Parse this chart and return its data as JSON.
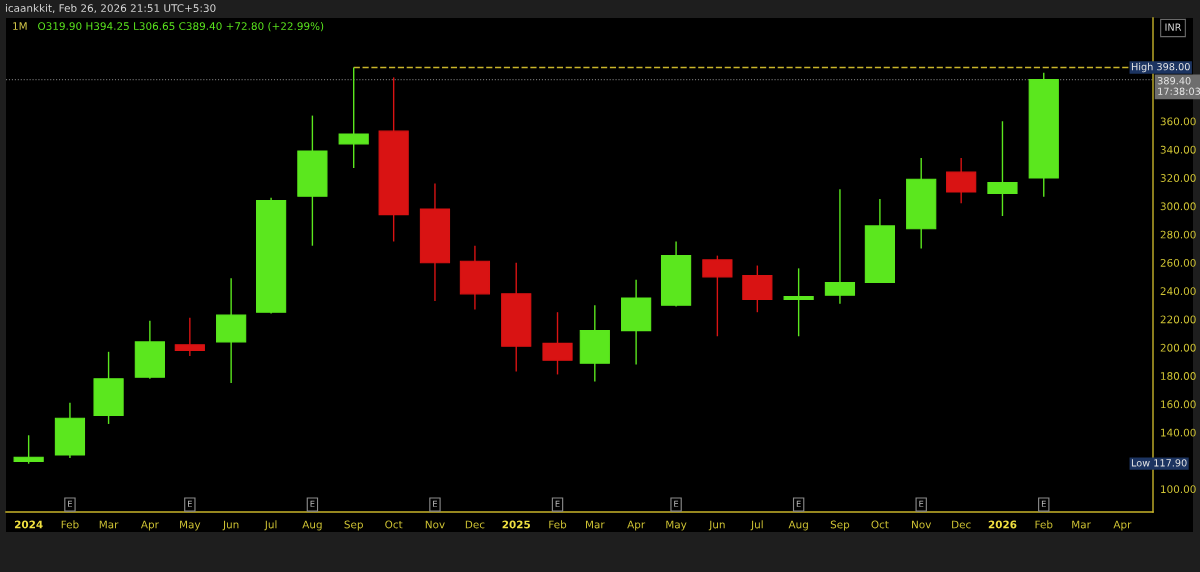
{
  "chart_data": {
    "type": "candlestick",
    "title": "1M",
    "subtitle": "O319.90 H394.25 L306.65 C389.40 +72.80 (+22.99%)",
    "x": [
      "2024-01",
      "2024-02",
      "2024-03",
      "2024-04",
      "2024-05",
      "2024-06",
      "2024-07",
      "2024-08",
      "2024-09",
      "2024-10",
      "2024-11",
      "2024-12",
      "2025-01",
      "2025-02",
      "2025-03",
      "2025-04",
      "2025-05",
      "2025-06",
      "2025-07",
      "2025-08",
      "2025-09",
      "2025-10",
      "2025-11",
      "2025-12",
      "2026-01",
      "2026-02"
    ],
    "ohlc": [
      [
        119.5,
        138,
        117.9,
        122.5
      ],
      [
        124,
        161,
        122,
        150
      ],
      [
        152,
        197,
        146,
        178
      ],
      [
        179,
        219,
        178,
        204
      ],
      [
        202,
        221,
        194,
        198
      ],
      [
        204,
        249,
        175,
        223
      ],
      [
        225,
        306,
        224,
        304
      ],
      [
        307,
        364,
        272,
        339
      ],
      [
        344,
        398,
        327,
        351
      ],
      [
        353,
        391,
        275,
        294
      ],
      [
        298,
        316,
        233,
        260
      ],
      [
        261,
        272,
        227,
        238
      ],
      [
        238,
        260,
        183,
        201
      ],
      [
        203,
        225,
        181,
        191
      ],
      [
        189,
        230,
        176,
        212
      ],
      [
        212,
        248,
        188,
        235
      ],
      [
        230,
        275,
        229,
        265
      ],
      [
        262,
        265,
        208,
        250
      ],
      [
        251,
        258,
        225,
        234
      ],
      [
        234,
        256,
        208,
        236
      ],
      [
        237,
        312,
        231,
        246
      ],
      [
        246,
        305,
        246,
        286
      ],
      [
        284,
        334,
        270,
        319
      ],
      [
        324,
        334,
        302,
        310
      ],
      [
        309,
        360,
        293,
        316.6
      ],
      [
        319.9,
        394.25,
        306.65,
        389.4
      ]
    ],
    "colors": [
      "#5be71e",
      "#5be71e",
      "#5be71e",
      "#5be71e",
      "#d91313",
      "#5be71e",
      "#5be71e",
      "#5be71e",
      "#5be71e",
      "#d91313",
      "#d91313",
      "#d91313",
      "#d91313",
      "#d91313",
      "#5be71e",
      "#5be71e",
      "#5be71e",
      "#d91313",
      "#d91313",
      "#5be71e",
      "#5be71e",
      "#5be71e",
      "#5be71e",
      "#d91313",
      "#5be71e",
      "#5be71e"
    ],
    "xlim": [
      "2023-12-15",
      "2026-04-24"
    ],
    "xticks": [
      {
        "value": "2024-01",
        "label": "2024"
      },
      {
        "value": "2024-02",
        "label": "Feb"
      },
      {
        "value": "2024-03",
        "label": "Mar"
      },
      {
        "value": "2024-04",
        "label": "Apr"
      },
      {
        "value": "2024-05",
        "label": "May"
      },
      {
        "value": "2024-06",
        "label": "Jun"
      },
      {
        "value": "2024-07",
        "label": "Jul"
      },
      {
        "value": "2024-08",
        "label": "Aug"
      },
      {
        "value": "2024-09",
        "label": "Sep"
      },
      {
        "value": "2024-10",
        "label": "Oct"
      },
      {
        "value": "2024-11",
        "label": "Nov"
      },
      {
        "value": "2024-12",
        "label": "Dec"
      },
      {
        "value": "2025-01",
        "label": "2025"
      },
      {
        "value": "2025-02",
        "label": "Feb"
      },
      {
        "value": "2025-03",
        "label": "Mar"
      },
      {
        "value": "2025-04",
        "label": "Apr"
      },
      {
        "value": "2025-05",
        "label": "May"
      },
      {
        "value": "2025-06",
        "label": "Jun"
      },
      {
        "value": "2025-07",
        "label": "Jul"
      },
      {
        "value": "2025-08",
        "label": "Aug"
      },
      {
        "value": "2025-09",
        "label": "Sep"
      },
      {
        "value": "2025-10",
        "label": "Oct"
      },
      {
        "value": "2025-11",
        "label": "Nov"
      },
      {
        "value": "2025-12",
        "label": "Dec"
      },
      {
        "value": "2026-01",
        "label": "2026"
      },
      {
        "value": "2026-02",
        "label": "Feb"
      },
      {
        "value": "2026-03",
        "label": "Mar"
      },
      {
        "value": "2026-04",
        "label": "Apr"
      }
    ],
    "ylim": [
      83.75,
      433
    ],
    "yticks": [
      {
        "value": 100,
        "label": "100.00"
      },
      {
        "value": 140,
        "label": "140.00"
      },
      {
        "value": 160,
        "label": "160.00"
      },
      {
        "value": 180,
        "label": "180.00"
      },
      {
        "value": 200,
        "label": "200.00"
      },
      {
        "value": 220,
        "label": "220.00"
      },
      {
        "value": 240,
        "label": "240.00"
      },
      {
        "value": 260,
        "label": "260.00"
      },
      {
        "value": 280,
        "label": "280.00"
      },
      {
        "value": 300,
        "label": "300.00"
      },
      {
        "value": 320,
        "label": "320.00"
      },
      {
        "value": 340,
        "label": "340.00"
      },
      {
        "value": 360,
        "label": "360.00"
      }
    ],
    "ref_lines": [
      {
        "axis": "y",
        "value": 398,
        "label": "High 398.00",
        "color": "#c9b52a",
        "line_style": "dashed"
      },
      {
        "axis": "y",
        "value": 389.4,
        "label": "389.40\n17:38:03",
        "color": "#6e6e6e",
        "line_style": "dotted"
      }
    ],
    "annotations": [
      "icaankkit, Feb 26, 2026 21:51 UTC+5:30",
      "INR",
      "Low 117.90",
      {
        "text": "E",
        "x": "2024-02",
        "y": 89
      },
      {
        "text": "E",
        "x": "2024-05",
        "y": 89
      },
      {
        "text": "E",
        "x": "2024-08",
        "y": 89
      },
      {
        "text": "E",
        "x": "2024-11",
        "y": 89
      },
      {
        "text": "E",
        "x": "2025-02",
        "y": 89
      },
      {
        "text": "E",
        "x": "2025-05",
        "y": 89
      },
      {
        "text": "E",
        "x": "2025-08",
        "y": 89
      },
      {
        "text": "E",
        "x": "2025-11",
        "y": 89
      },
      {
        "text": "E",
        "x": "2026-02",
        "y": 89
      }
    ],
    "grid": false
  }
}
